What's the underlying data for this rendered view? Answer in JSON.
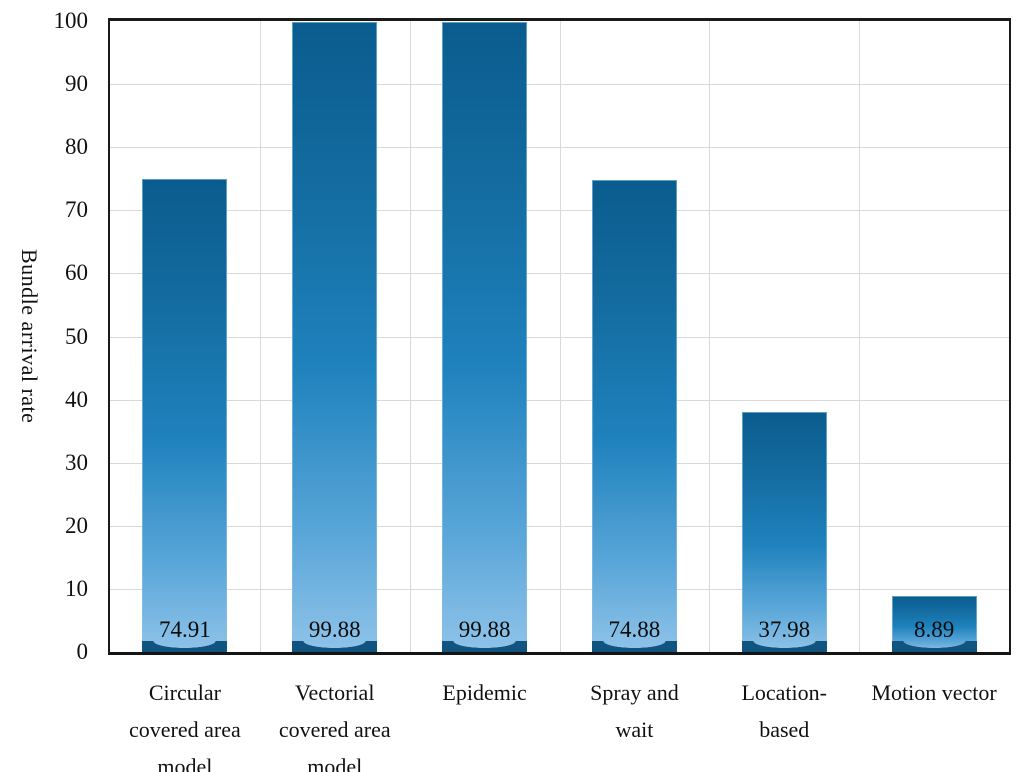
{
  "chart_data": {
    "type": "bar",
    "title": "",
    "xlabel": "",
    "ylabel": "Bundle arrival rate",
    "ylim": [
      0,
      100
    ],
    "yticks": [
      0,
      10,
      20,
      30,
      40,
      50,
      60,
      70,
      80,
      90,
      100
    ],
    "grid": {
      "horizontal": true,
      "vertical": true
    },
    "legend_position": "none",
    "categories": [
      "Circular covered area model",
      "Vectorial covered area model",
      "Epidemic",
      "Spray and wait",
      "Location-based",
      "Motion vector"
    ],
    "categories_wrapped": [
      [
        "Circular",
        "covered area",
        "model"
      ],
      [
        "Vectorial",
        "covered area",
        "model"
      ],
      [
        "Epidemic"
      ],
      [
        "Spray and",
        "wait"
      ],
      [
        "Location-",
        "based"
      ],
      [
        "Motion vector"
      ]
    ],
    "values": [
      74.91,
      99.88,
      99.88,
      74.88,
      37.98,
      8.89
    ],
    "value_labels": [
      "74.91",
      "99.88",
      "99.88",
      "74.88",
      "37.98",
      "8.89"
    ],
    "colors": {
      "bar_gradient_top": "#0a5c8e",
      "bar_gradient_upper_mid": "#136b9f",
      "bar_gradient_mid": "#1f82bd",
      "bar_gradient_lower_mid": "#5ba7d9",
      "bar_gradient_bottom": "#8fc3e9",
      "bar_base_dark": "#11547f",
      "gridline": "#d9d9d9",
      "axis": "#1a1a1a",
      "text": "#111111",
      "background": "#ffffff"
    }
  }
}
